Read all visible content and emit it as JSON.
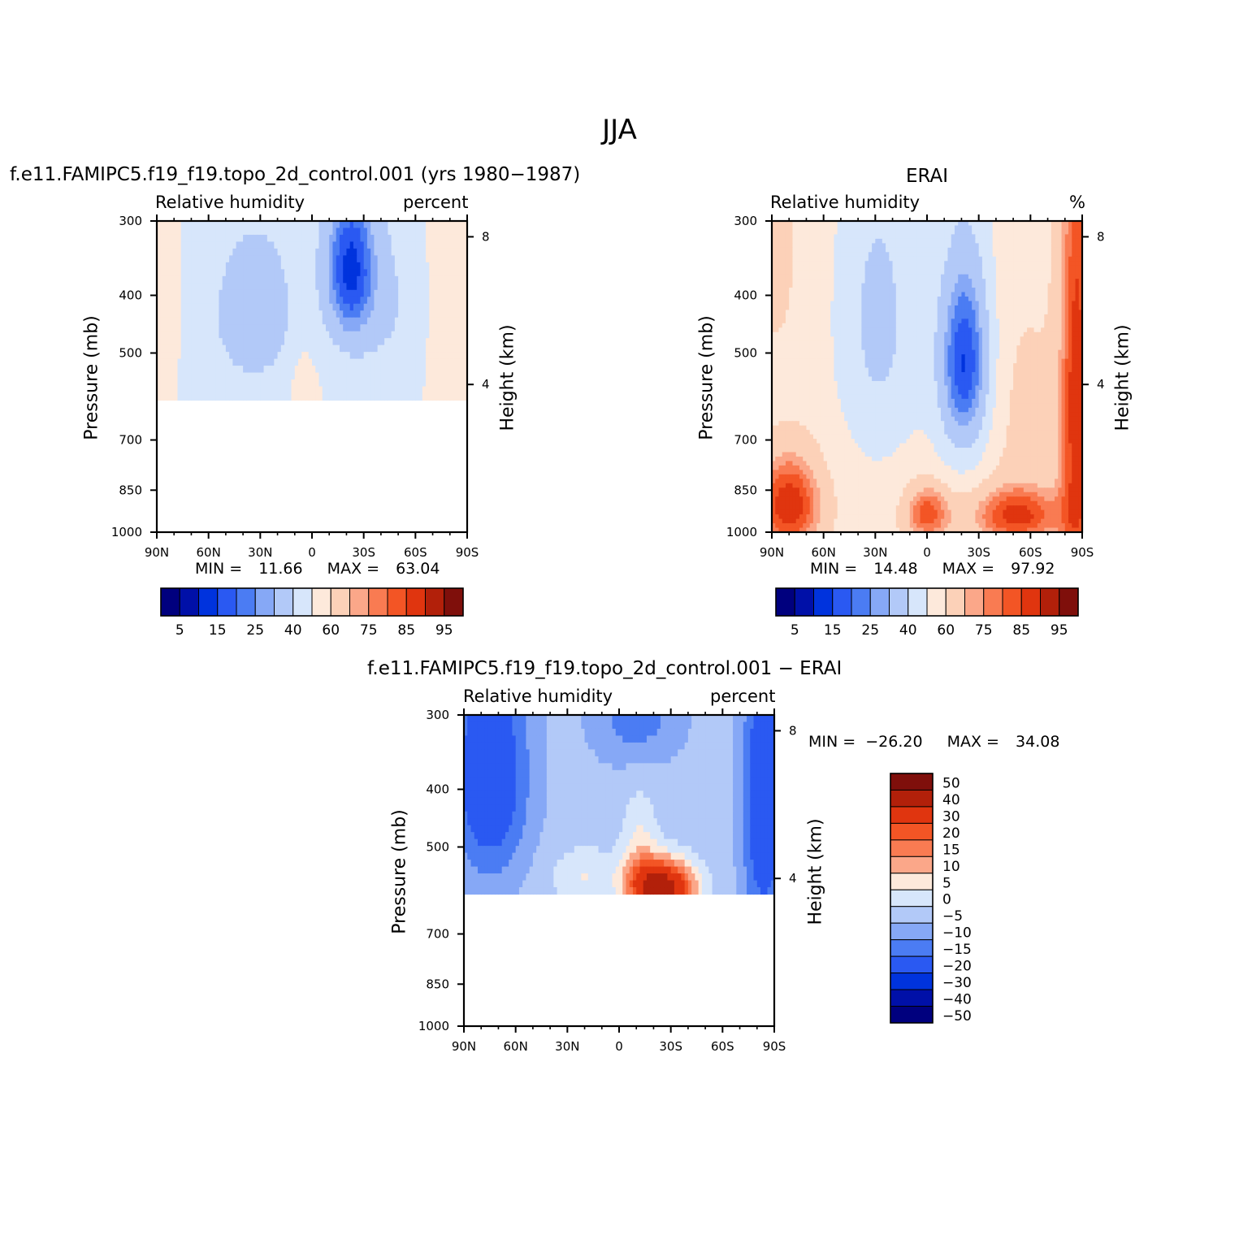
{
  "figure": {
    "title": "JJA"
  },
  "colors": {
    "rh_levels": [
      "#00007e",
      "#0010a8",
      "#0033dd",
      "#2a59f2",
      "#4b7cf3",
      "#86a8f6",
      "#b2c9f8",
      "#d7e6fb",
      "#fde9db",
      "#fcd1b8",
      "#fba789",
      "#f97b52",
      "#f35525",
      "#e0350f",
      "#b2200a",
      "#7f0f0b"
    ],
    "diff_levels": [
      "#7f0f0b",
      "#b2200a",
      "#e0350f",
      "#f35525",
      "#f97b52",
      "#fba789",
      "#fde9db",
      "#d7e6fb",
      "#b2c9f8",
      "#86a8f6",
      "#4b7cf3",
      "#2a59f2",
      "#0033dd",
      "#0010a8",
      "#00007e"
    ]
  },
  "chart_data": [
    {
      "type": "heatmap",
      "panel": "model",
      "title": "f.e11.FAMIPC5.f19_f19.topo_2d_control.001 (yrs 1980−1987)",
      "left_label": "Relative humidity",
      "right_label": "percent",
      "xlabel": "",
      "ylabel": "Pressure (mb)",
      "y2label": "Height (km)",
      "x_ticks": [
        "90N",
        "60N",
        "30N",
        "0",
        "30S",
        "60S",
        "90S"
      ],
      "y_ticks": [
        "300",
        "400",
        "500",
        "700",
        "850",
        "1000"
      ],
      "y_log": true,
      "ylim": [
        1000,
        300
      ],
      "y2_ticks": [
        "8",
        "4"
      ],
      "data_extent_mb": [
        300,
        600
      ],
      "min_label": "MIN =",
      "min": "11.66",
      "max_label": "MAX =",
      "max": "63.04",
      "colorbar_labels": [
        "5",
        "15",
        "25",
        "40",
        "60",
        "75",
        "85",
        "95"
      ]
    },
    {
      "type": "heatmap",
      "panel": "obs",
      "title": "ERAI",
      "left_label": "Relative humidity",
      "right_label": "%",
      "xlabel": "",
      "ylabel": "Pressure (mb)",
      "y2label": "Height (km)",
      "x_ticks": [
        "90N",
        "60N",
        "30N",
        "0",
        "30S",
        "60S",
        "90S"
      ],
      "y_ticks": [
        "300",
        "400",
        "500",
        "700",
        "850",
        "1000"
      ],
      "y_log": true,
      "ylim": [
        1000,
        300
      ],
      "y2_ticks": [
        "8",
        "4"
      ],
      "min_label": "MIN =",
      "min": "14.48",
      "max_label": "MAX =",
      "max": "97.92",
      "colorbar_labels": [
        "5",
        "15",
        "25",
        "40",
        "60",
        "75",
        "85",
        "95"
      ]
    },
    {
      "type": "heatmap",
      "panel": "difference",
      "title": "f.e11.FAMIPC5.f19_f19.topo_2d_control.001 − ERAI",
      "left_label": "Relative humidity",
      "right_label": "percent",
      "xlabel": "",
      "ylabel": "Pressure (mb)",
      "y2label": "Height (km)",
      "x_ticks": [
        "90N",
        "60N",
        "30N",
        "0",
        "30S",
        "60S",
        "90S"
      ],
      "y_ticks": [
        "300",
        "400",
        "500",
        "700",
        "850",
        "1000"
      ],
      "y_log": true,
      "ylim": [
        1000,
        300
      ],
      "y2_ticks": [
        "8",
        "4"
      ],
      "data_extent_mb": [
        300,
        600
      ],
      "min_label": "MIN =",
      "min": "−26.20",
      "max_label": "MAX =",
      "max": "34.08",
      "colorbar_labels": [
        "50",
        "40",
        "30",
        "20",
        "15",
        "10",
        "5",
        "0",
        "−5",
        "−10",
        "−15",
        "−20",
        "−30",
        "−40",
        "−50"
      ]
    }
  ]
}
